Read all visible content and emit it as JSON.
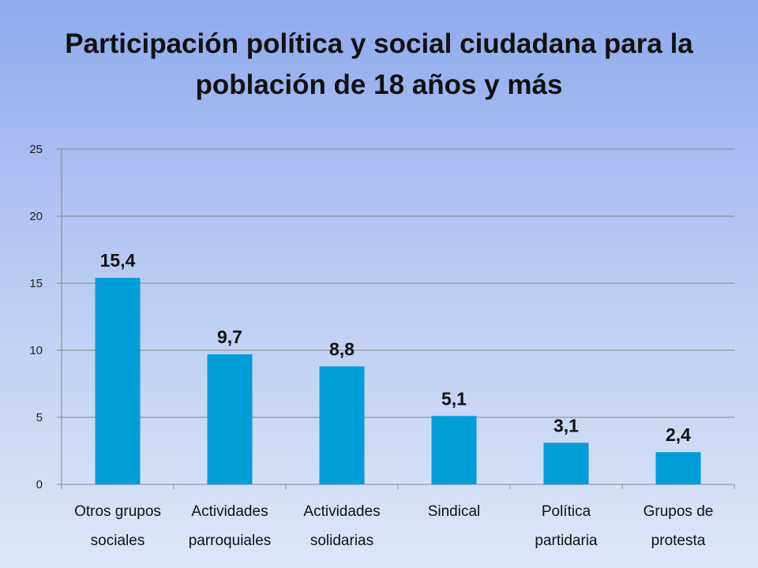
{
  "chart_data": {
    "type": "bar",
    "title_lines": [
      "Participación política y social ciudadana para la",
      "población de 18 años y más"
    ],
    "categories": [
      [
        "Otros grupos",
        "sociales"
      ],
      [
        "Actividades",
        "parroquiales"
      ],
      [
        "Actividades",
        "solidarias"
      ],
      [
        "Sindical"
      ],
      [
        "Política",
        "partidaria"
      ],
      [
        "Grupos de",
        "protesta"
      ]
    ],
    "values": [
      15.4,
      9.7,
      8.8,
      5.1,
      3.1,
      2.4
    ],
    "data_labels": [
      "15,4",
      "9,7",
      "8,8",
      "5,1",
      "3,1",
      "2,4"
    ],
    "yticks": [
      0,
      5,
      10,
      15,
      20,
      25
    ],
    "ylim": [
      0,
      25
    ],
    "grid": true,
    "legend": "none",
    "xlabel": "",
    "ylabel": "",
    "colors": {
      "bar": "#009ed8",
      "grid": "#888888",
      "axis": "#888888"
    }
  }
}
